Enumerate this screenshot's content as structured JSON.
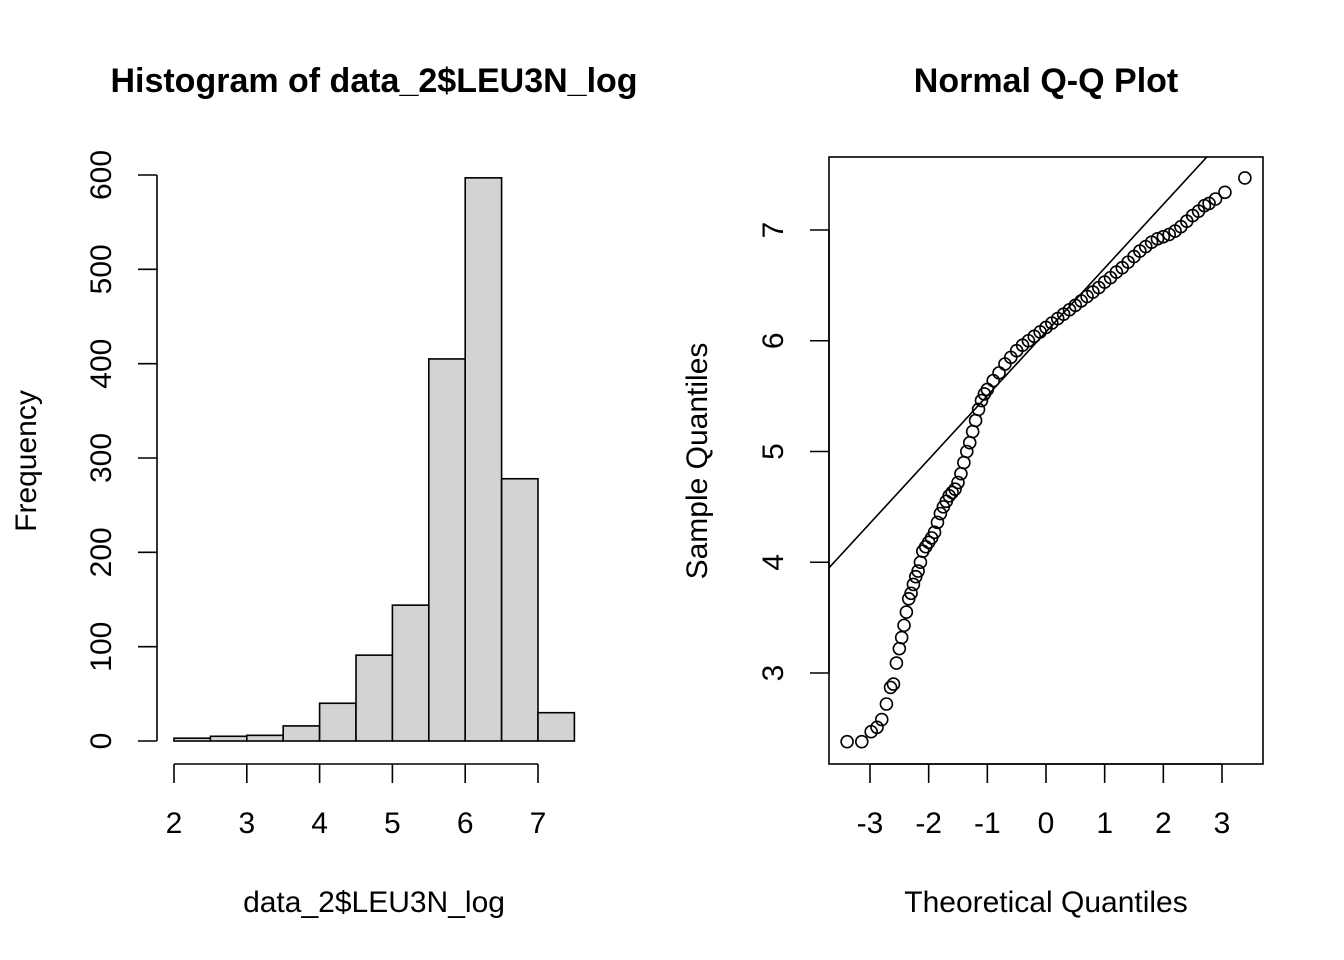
{
  "chart_data": [
    {
      "type": "bar",
      "title": "Histogram of data_2$LEU3N_log",
      "xlabel": "data_2$LEU3N_log",
      "ylabel": "Frequency",
      "bin_edges": [
        2,
        2.5,
        3,
        3.5,
        4,
        4.5,
        5,
        5.5,
        6,
        6.5,
        7,
        7.5
      ],
      "values": [
        3,
        5,
        6,
        16,
        40,
        91,
        144,
        405,
        597,
        278,
        30
      ],
      "xlim": [
        2,
        7.5
      ],
      "ylim": [
        0,
        600
      ],
      "x_ticks": [
        "2",
        "3",
        "4",
        "5",
        "6",
        "7"
      ],
      "y_ticks": [
        "0",
        "100",
        "200",
        "300",
        "400",
        "500",
        "600"
      ],
      "bar_fill": "#d3d3d3",
      "grid": false
    },
    {
      "type": "scatter",
      "title": "Normal Q-Q Plot",
      "xlabel": "Theoretical Quantiles",
      "ylabel": "Sample Quantiles",
      "x_ticks": [
        "-3",
        "-2",
        "-1",
        "0",
        "1",
        "2",
        "3"
      ],
      "y_ticks": [
        "3",
        "4",
        "5",
        "6",
        "7"
      ],
      "xlim": [
        -3.7,
        3.7
      ],
      "ylim": [
        2.2,
        7.66
      ],
      "reference_line": {
        "intercept": 6.08,
        "slope": 0.576
      },
      "points": [
        [
          -3.39,
          2.38
        ],
        [
          -3.14,
          2.38
        ],
        [
          -2.98,
          2.47
        ],
        [
          -2.88,
          2.51
        ],
        [
          -2.8,
          2.58
        ],
        [
          -2.72,
          2.72
        ],
        [
          -2.65,
          2.87
        ],
        [
          -2.6,
          2.9
        ],
        [
          -2.55,
          3.09
        ],
        [
          -2.5,
          3.22
        ],
        [
          -2.46,
          3.32
        ],
        [
          -2.42,
          3.43
        ],
        [
          -2.38,
          3.55
        ],
        [
          -2.34,
          3.67
        ],
        [
          -2.3,
          3.72
        ],
        [
          -2.26,
          3.8
        ],
        [
          -2.22,
          3.87
        ],
        [
          -2.18,
          3.92
        ],
        [
          -2.14,
          4.0
        ],
        [
          -2.1,
          4.1
        ],
        [
          -2.05,
          4.14
        ],
        [
          -2.0,
          4.18
        ],
        [
          -1.95,
          4.22
        ],
        [
          -1.9,
          4.27
        ],
        [
          -1.85,
          4.36
        ],
        [
          -1.8,
          4.44
        ],
        [
          -1.75,
          4.5
        ],
        [
          -1.7,
          4.55
        ],
        [
          -1.65,
          4.6
        ],
        [
          -1.6,
          4.63
        ],
        [
          -1.55,
          4.66
        ],
        [
          -1.5,
          4.72
        ],
        [
          -1.45,
          4.8
        ],
        [
          -1.4,
          4.9
        ],
        [
          -1.35,
          5.0
        ],
        [
          -1.3,
          5.08
        ],
        [
          -1.25,
          5.18
        ],
        [
          -1.2,
          5.28
        ],
        [
          -1.15,
          5.38
        ],
        [
          -1.1,
          5.46
        ],
        [
          -1.05,
          5.52
        ],
        [
          -1.0,
          5.56
        ],
        [
          -0.9,
          5.64
        ],
        [
          -0.8,
          5.71
        ],
        [
          -0.7,
          5.79
        ],
        [
          -0.6,
          5.85
        ],
        [
          -0.5,
          5.91
        ],
        [
          -0.4,
          5.96
        ],
        [
          -0.3,
          6.0
        ],
        [
          -0.2,
          6.04
        ],
        [
          -0.1,
          6.08
        ],
        [
          0.0,
          6.12
        ],
        [
          0.1,
          6.16
        ],
        [
          0.2,
          6.2
        ],
        [
          0.3,
          6.24
        ],
        [
          0.4,
          6.28
        ],
        [
          0.5,
          6.32
        ],
        [
          0.6,
          6.36
        ],
        [
          0.7,
          6.4
        ],
        [
          0.8,
          6.44
        ],
        [
          0.9,
          6.48
        ],
        [
          1.0,
          6.53
        ],
        [
          1.1,
          6.57
        ],
        [
          1.2,
          6.62
        ],
        [
          1.3,
          6.66
        ],
        [
          1.4,
          6.71
        ],
        [
          1.5,
          6.76
        ],
        [
          1.6,
          6.81
        ],
        [
          1.7,
          6.85
        ],
        [
          1.8,
          6.89
        ],
        [
          1.9,
          6.92
        ],
        [
          2.0,
          6.94
        ],
        [
          2.1,
          6.96
        ],
        [
          2.2,
          6.99
        ],
        [
          2.3,
          7.03
        ],
        [
          2.4,
          7.08
        ],
        [
          2.5,
          7.13
        ],
        [
          2.6,
          7.17
        ],
        [
          2.7,
          7.22
        ],
        [
          2.78,
          7.24
        ],
        [
          2.89,
          7.28
        ],
        [
          3.05,
          7.34
        ],
        [
          3.39,
          7.47
        ]
      ]
    }
  ]
}
